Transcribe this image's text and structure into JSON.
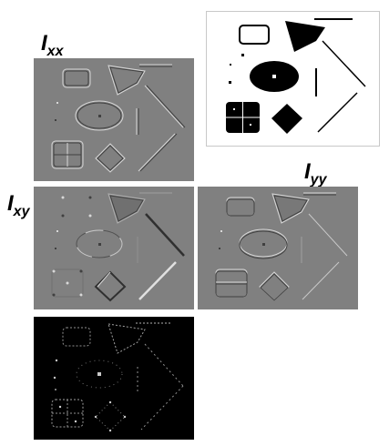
{
  "labels": {
    "ixx": {
      "base": "I",
      "sub": "xx"
    },
    "ixy": {
      "base": "I",
      "sub": "xy"
    },
    "iyy": {
      "base": "I",
      "sub": "yy"
    }
  },
  "colors": {
    "background": "#ffffff",
    "panel_gray": "#808080",
    "highlight": "#d8d8d8",
    "shadow": "#404040",
    "response_dark": "#000000",
    "response_light": "#c8c8c8"
  }
}
